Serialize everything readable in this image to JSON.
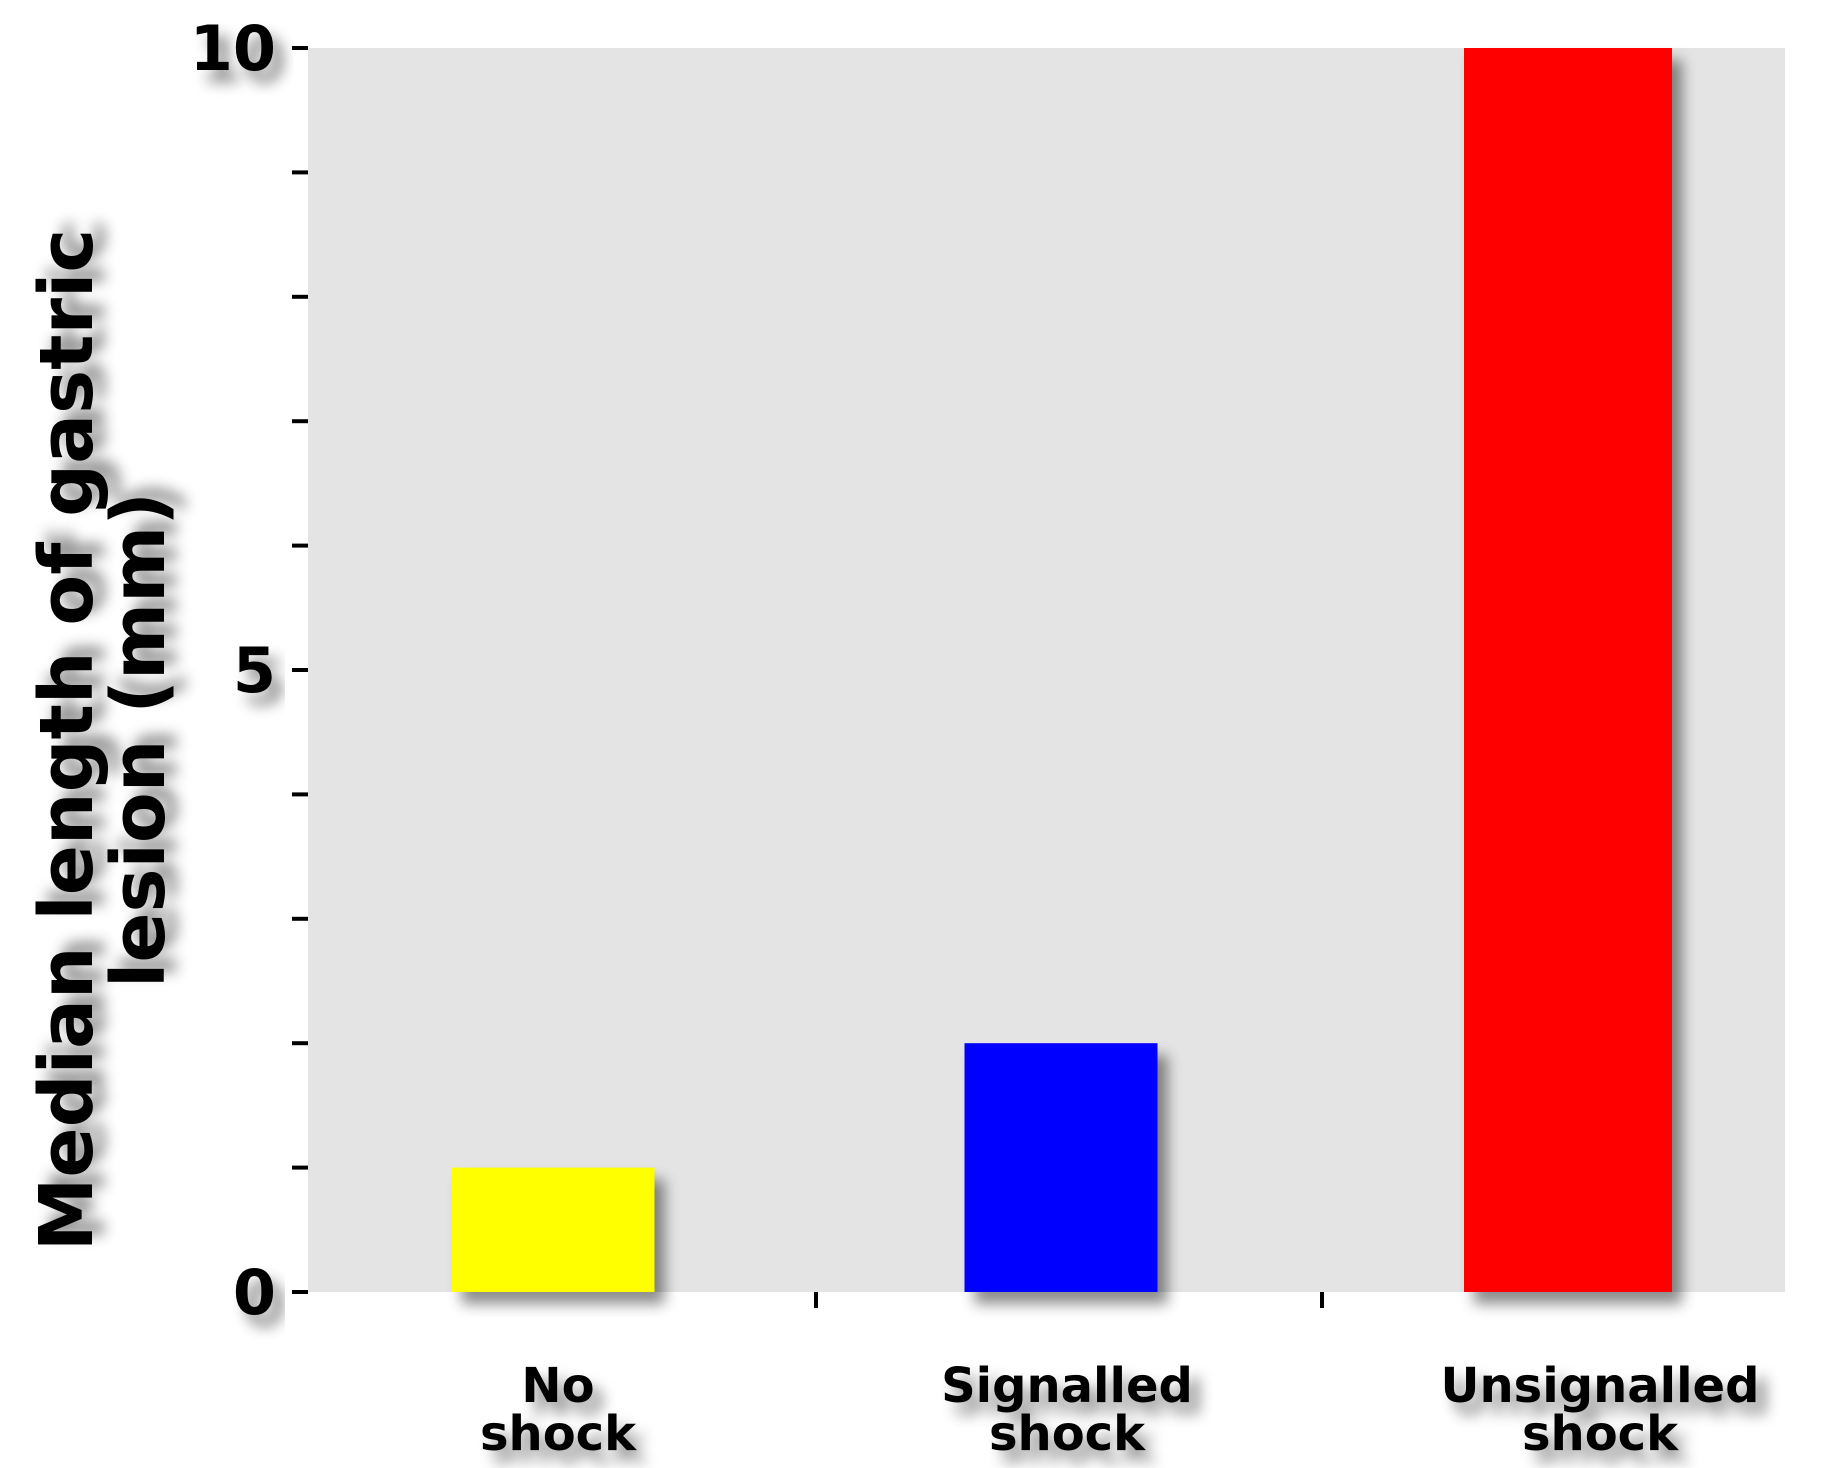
{
  "chart_data": {
    "type": "bar",
    "title": "",
    "xlabel": "",
    "ylabel_lines": [
      "Median length of gastric",
      "lesion (mm)"
    ],
    "categories": [
      [
        "No",
        "shock"
      ],
      [
        "Signalled",
        "shock"
      ],
      [
        "Unsignalled",
        "shock"
      ]
    ],
    "values": [
      1.0,
      2.0,
      10.0
    ],
    "bar_colors": [
      "#ffff00",
      "#0000ff",
      "#ff0000"
    ],
    "ylim": [
      0,
      10
    ],
    "yticks": [
      0,
      5,
      10
    ],
    "y_minor_step": 1,
    "grid": false,
    "plot_background": "#e4e4e4",
    "axis_color": "#000000"
  }
}
